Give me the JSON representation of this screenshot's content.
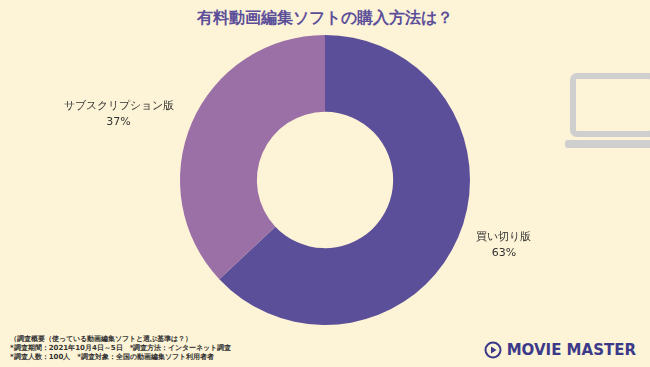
{
  "chart_data": {
    "type": "doughnut",
    "title": "有料動画編集ソフトの購入方法は？",
    "categories": [
      "買い切り版",
      "サブスクリプション版"
    ],
    "values": [
      63,
      37
    ],
    "value_labels": [
      "63%",
      "37%"
    ],
    "colors": [
      "#5c4f9a",
      "#9a70a6"
    ],
    "data_labels": true,
    "footnote": [
      "（調査概要（使っている動画編集ソフトと選ぶ基準は？）",
      "*調査期間：2021年10月4日～5日　*調査方法：インターネット調査",
      "*調査人数：100人　*調査対象：全国の動画編集ソフト利用者者"
    ],
    "logo": "MOVIE MASTER"
  }
}
